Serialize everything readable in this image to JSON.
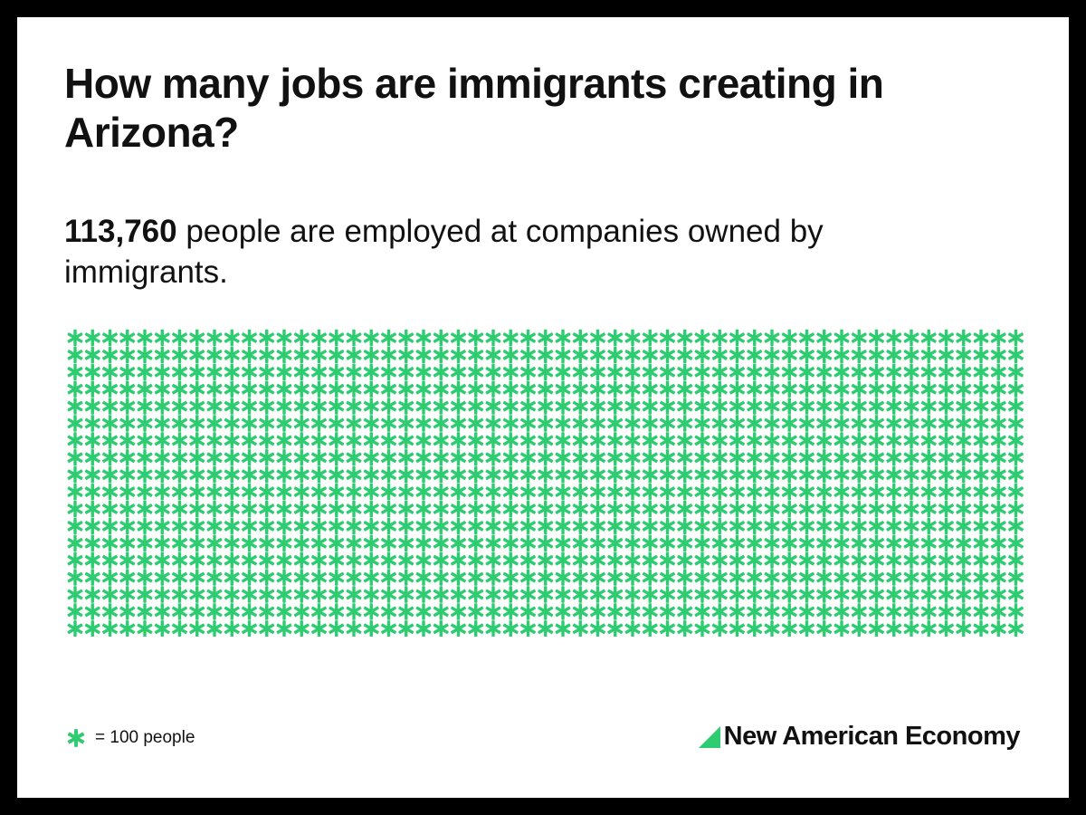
{
  "title": "How many jobs are immigrants creating in Arizona?",
  "subtitle": {
    "stat": "113,760",
    "text": " people are employed at companies owned by immigrants."
  },
  "legend": {
    "icon": "asterisk-icon",
    "text": "= 100 people"
  },
  "brand": {
    "name": "New American Economy",
    "logo": "triangle-logo-icon"
  },
  "colors": {
    "accent": "#2ecc71",
    "text": "#111111",
    "background": "#ffffff",
    "frame": "#000000"
  },
  "chart_data": {
    "type": "pictogram",
    "total_people": 113760,
    "people_per_icon": 100,
    "icon_count": 1138,
    "icons_per_row": 55,
    "icon": "asterisk"
  }
}
